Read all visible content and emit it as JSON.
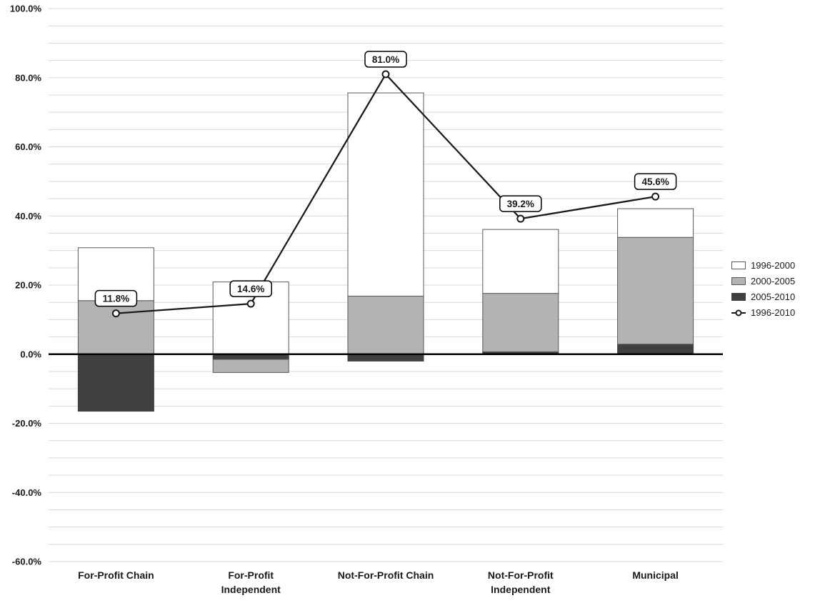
{
  "chart_data": {
    "type": "bar",
    "subtype": "stacked-bar-with-line-overlay",
    "title": "",
    "xlabel": "",
    "ylabel": "",
    "categories": [
      "For-Profit Chain",
      "For-Profit Independent",
      "Not-For-Profit Chain",
      "Not-For-Profit Independent",
      "Municipal"
    ],
    "category_label_lines": [
      [
        "For-Profit Chain"
      ],
      [
        "For-Profit",
        "Independent"
      ],
      [
        "Not-For-Profit Chain"
      ],
      [
        "Not-For-Profit",
        "Independent"
      ],
      [
        "Municipal"
      ]
    ],
    "bar_series": [
      {
        "name": "1996-2000",
        "color": "#ffffff",
        "border": "#595959",
        "values": [
          15.3,
          20.9,
          58.8,
          18.5,
          8.3
        ]
      },
      {
        "name": "2000-2005",
        "color": "#b3b3b3",
        "border": "#595959",
        "values": [
          15.5,
          -3.8,
          16.8,
          16.9,
          30.9
        ]
      },
      {
        "name": "2005-2010",
        "color": "#404040",
        "border": "#404040",
        "values": [
          -16.5,
          -1.5,
          -2.0,
          0.7,
          2.9
        ]
      }
    ],
    "line_series": {
      "name": "1996-2010",
      "color": "#1a1a1a",
      "values": [
        11.8,
        14.6,
        81.0,
        39.2,
        45.6
      ],
      "labels": [
        "11.8%",
        "14.6%",
        "81.0%",
        "39.2%",
        "45.6%"
      ]
    },
    "ylim": [
      -60,
      100
    ],
    "y_tick_step": 20,
    "y_grid_step": 5,
    "y_tick_suffix": "%",
    "grid": true,
    "legend_position": "right",
    "legend": [
      "1996-2000",
      "2000-2005",
      "2005-2010",
      "1996-2010"
    ],
    "colors": {
      "grid": "#d9d9d9",
      "zero_axis": "#000000",
      "tick_text": "#1a1a1a",
      "label_box_fill": "#ffffff",
      "label_box_border": "#000000"
    }
  }
}
